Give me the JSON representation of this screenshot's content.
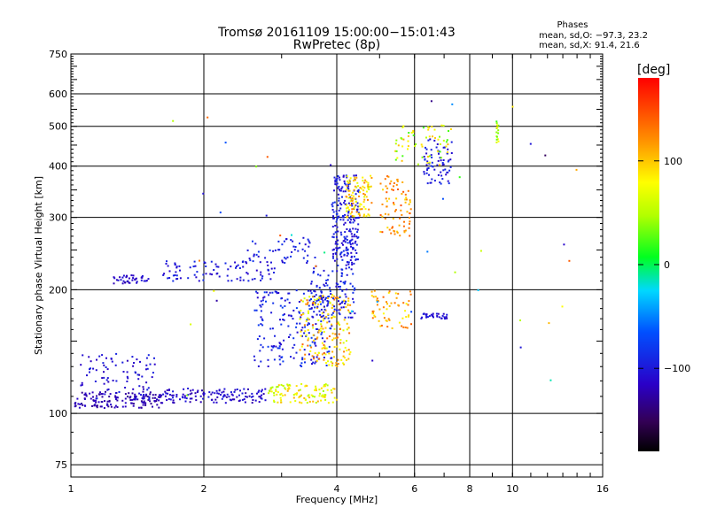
{
  "chart_data": {
    "type": "scatter",
    "title": "Tromsø 20161109 15:00:00−15:01:43",
    "subtitle": "RwPretec (8p)",
    "xlabel": "Frequency [MHz]",
    "ylabel": "Stationary phase Virtual Height [km]",
    "x_scale": "log",
    "y_scale": "log",
    "xlim": [
      1,
      16
    ],
    "ylim": [
      70,
      750
    ],
    "x_ticks": [
      1,
      2,
      4,
      6,
      8,
      10,
      16
    ],
    "x_tick_labels": [
      "1",
      "2",
      "4",
      "6",
      "8",
      "10",
      "16"
    ],
    "y_ticks": [
      75,
      100,
      200,
      300,
      400,
      500,
      600,
      750
    ],
    "y_tick_labels": [
      "75",
      "100",
      "200",
      "300",
      "400",
      "500",
      "600",
      "750"
    ],
    "grid": true,
    "phase_stats": {
      "title": "Phases",
      "line_o": "mean, sd,O: −97.3, 23.2",
      "line_x": "mean, sd,X:  91.4, 21.6"
    },
    "colorbar": {
      "label": "[deg]",
      "range": [
        -180,
        180
      ],
      "ticks": [
        100,
        0,
        -100
      ],
      "tick_labels": [
        "100",
        "0",
        "−100"
      ],
      "colormap": "rainbow"
    },
    "clusters": [
      {
        "name": "e-trace-low",
        "n": 140,
        "x": [
          1.02,
          1.6
        ],
        "y": [
          103,
          113
        ],
        "phase": [
          -135,
          -110
        ]
      },
      {
        "name": "e-trace-scatter",
        "n": 90,
        "x": [
          1.05,
          1.55
        ],
        "y": [
          108,
          140
        ],
        "phase": [
          -125,
          -90
        ]
      },
      {
        "name": "e-trace-mid",
        "n": 130,
        "x": [
          1.6,
          2.8
        ],
        "y": [
          106,
          115
        ],
        "phase": [
          -125,
          -95
        ]
      },
      {
        "name": "e-trace-high",
        "n": 110,
        "x": [
          2.8,
          4.0
        ],
        "y": [
          106,
          118
        ],
        "phase": [
          40,
          110
        ]
      },
      {
        "name": "es-band-low",
        "n": 40,
        "x": [
          1.25,
          1.5
        ],
        "y": [
          207,
          217
        ],
        "phase": [
          -125,
          -100
        ]
      },
      {
        "name": "es-band-mid",
        "n": 90,
        "x": [
          1.6,
          2.9
        ],
        "y": [
          210,
          235
        ],
        "phase": [
          -115,
          -85
        ]
      },
      {
        "name": "es-band-high",
        "n": 50,
        "x": [
          2.5,
          3.6
        ],
        "y": [
          232,
          268
        ],
        "phase": [
          -110,
          -80
        ]
      },
      {
        "name": "f1-o-cusp",
        "n": 200,
        "x": [
          2.6,
          3.9
        ],
        "y": [
          130,
          200
        ],
        "phase": [
          -115,
          -75
        ]
      },
      {
        "name": "f1-x-cusp",
        "n": 180,
        "x": [
          3.3,
          4.3
        ],
        "y": [
          130,
          195
        ],
        "phase": [
          60,
          140
        ]
      },
      {
        "name": "f2-o-trace",
        "n": 220,
        "x": [
          3.9,
          4.5
        ],
        "y": [
          230,
          380
        ],
        "phase": [
          -115,
          -85
        ]
      },
      {
        "name": "f-o-lower",
        "n": 110,
        "x": [
          3.5,
          4.4
        ],
        "y": [
          170,
          230
        ],
        "phase": [
          -110,
          -80
        ]
      },
      {
        "name": "f2-x-trace",
        "n": 100,
        "x": [
          4.2,
          4.8
        ],
        "y": [
          300,
          380
        ],
        "phase": [
          60,
          130
        ]
      },
      {
        "name": "f2-x-upper",
        "n": 80,
        "x": [
          5.0,
          5.9
        ],
        "y": [
          270,
          380
        ],
        "phase": [
          90,
          150
        ]
      },
      {
        "name": "f-x-mid",
        "n": 60,
        "x": [
          4.8,
          5.9
        ],
        "y": [
          160,
          200
        ],
        "phase": [
          80,
          140
        ]
      },
      {
        "name": "f-o-mid-right",
        "n": 30,
        "x": [
          6.2,
          7.2
        ],
        "y": [
          170,
          175
        ],
        "phase": [
          -120,
          -95
        ]
      },
      {
        "name": "f2-high-o",
        "n": 70,
        "x": [
          6.3,
          7.3
        ],
        "y": [
          360,
          470
        ],
        "phase": [
          -115,
          -85
        ]
      },
      {
        "name": "f2-high-mixed",
        "n": 60,
        "x": [
          5.4,
          7.2
        ],
        "y": [
          400,
          510
        ],
        "phase": [
          20,
          110
        ]
      },
      {
        "name": "vertical-streak",
        "n": 16,
        "x": [
          9.2,
          9.3
        ],
        "y": [
          450,
          540
        ],
        "phase": [
          20,
          80
        ]
      },
      {
        "name": "sparse-noise",
        "n": 45,
        "x": [
          1.7,
          14.0
        ],
        "y": [
          110,
          580
        ],
        "phase": [
          -150,
          150
        ]
      }
    ]
  }
}
